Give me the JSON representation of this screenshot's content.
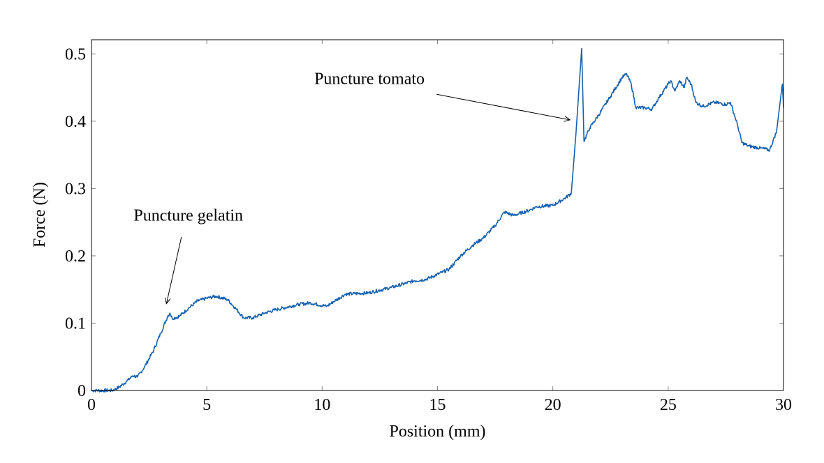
{
  "chart_data": {
    "type": "line",
    "title": "",
    "xlabel": "Position (mm)",
    "ylabel": "Force (N)",
    "xlim": [
      0,
      30
    ],
    "ylim": [
      0,
      0.521
    ],
    "grid": false,
    "line_color": "#1561b0",
    "xticks": [
      0,
      5,
      10,
      15,
      20,
      25,
      30
    ],
    "xtick_labels": [
      "0",
      "5",
      "10",
      "15",
      "20",
      "25",
      "30"
    ],
    "yticks": [
      0,
      0.1,
      0.2,
      0.3,
      0.4,
      0.5
    ],
    "ytick_labels": [
      "0",
      "0.1",
      "0.2",
      "0.3",
      "0.4",
      "0.5"
    ],
    "series": [
      {
        "x": [
          0,
          0.9,
          1.2,
          1.5,
          1.8,
          2.0,
          2.3,
          2.7,
          3.0,
          3.3,
          3.4,
          3.5,
          3.8,
          4.2,
          4.6,
          5.0,
          5.4,
          5.9,
          6.3,
          6.6,
          7.0,
          7.5,
          8.0,
          9.0,
          9.5,
          10.2,
          10.5,
          11.0,
          12.0,
          13.0,
          14.0,
          14.5,
          15.5,
          16.0,
          16.5,
          17.0,
          17.5,
          17.9,
          18.3,
          19.0,
          19.3,
          20.0,
          20.5,
          20.8,
          21.0,
          21.25,
          21.35,
          21.6,
          22.0,
          22.5,
          23.0,
          23.2,
          23.4,
          23.6,
          24.0,
          24.3,
          24.6,
          25.0,
          25.1,
          25.3,
          25.5,
          25.7,
          25.8,
          26.0,
          26.2,
          26.5,
          27.0,
          27.5,
          27.7,
          28.0,
          28.2,
          28.5,
          29.0,
          29.4,
          29.7,
          29.95,
          30.0
        ],
        "y": [
          0,
          0,
          0.005,
          0.013,
          0.022,
          0.02,
          0.035,
          0.06,
          0.085,
          0.11,
          0.115,
          0.107,
          0.11,
          0.122,
          0.133,
          0.137,
          0.14,
          0.135,
          0.12,
          0.108,
          0.108,
          0.115,
          0.12,
          0.128,
          0.13,
          0.125,
          0.132,
          0.143,
          0.145,
          0.153,
          0.163,
          0.165,
          0.18,
          0.2,
          0.215,
          0.227,
          0.245,
          0.265,
          0.26,
          0.268,
          0.273,
          0.275,
          0.285,
          0.293,
          0.38,
          0.508,
          0.37,
          0.39,
          0.41,
          0.437,
          0.465,
          0.47,
          0.455,
          0.42,
          0.42,
          0.418,
          0.435,
          0.455,
          0.46,
          0.445,
          0.46,
          0.45,
          0.465,
          0.455,
          0.428,
          0.422,
          0.428,
          0.425,
          0.428,
          0.395,
          0.368,
          0.363,
          0.36,
          0.357,
          0.385,
          0.455,
          0.42
        ]
      }
    ],
    "annotations": [
      {
        "text": "Puncture gelatin",
        "text_at": [
          4.2,
          0.252
        ],
        "arrow_from": [
          3.9,
          0.228
        ],
        "arrow_to": [
          3.25,
          0.129
        ]
      },
      {
        "text": "Puncture tomato",
        "text_at": [
          12.05,
          0.455
        ],
        "arrow_from": [
          14.96,
          0.44
        ],
        "arrow_to": [
          20.74,
          0.402
        ]
      }
    ]
  }
}
